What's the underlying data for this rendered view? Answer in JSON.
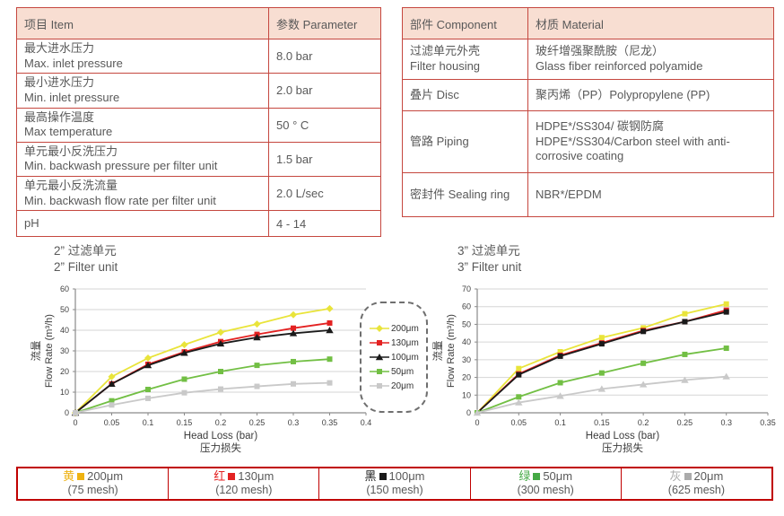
{
  "colors": {
    "table_border": "#c5473f",
    "header_bg": "#f8ded2",
    "strip_border": "#c00000",
    "text": "#595959",
    "grid": "#d6d6d6",
    "axis": "#8a8a8a"
  },
  "tables": {
    "left": {
      "headers": [
        "项目 Item",
        "参数 Parameter"
      ],
      "rows": [
        {
          "zh": "最大进水压力",
          "en": "Max. inlet pressure",
          "value": "8.0 bar"
        },
        {
          "zh": "最小进水压力",
          "en": "Min. inlet pressure",
          "value": "2.0 bar"
        },
        {
          "zh": "最高操作温度",
          "en": "Max temperature",
          "value": "50 ° C"
        },
        {
          "zh": "单元最小反洗压力",
          "en": "Min. backwash pressure per filter unit",
          "value": "1.5 bar"
        },
        {
          "zh": "单元最小反洗流量",
          "en": "Min. backwash flow rate per filter unit",
          "value": "2.0 L/sec"
        },
        {
          "zh": "pH",
          "en": "",
          "value": "4 - 14"
        }
      ]
    },
    "right": {
      "headers": [
        "部件 Component",
        "材质 Material"
      ],
      "rows": [
        {
          "zh": "过滤单元外壳",
          "en": "Filter housing",
          "value_zh": "玻纤增强聚酰胺（尼龙）",
          "value_en": "Glass fiber reinforced polyamide"
        },
        {
          "zh": "叠片 Disc",
          "en": "",
          "value_zh": "聚丙烯（PP）Polypropylene (PP)",
          "value_en": ""
        },
        {
          "zh": "管路 Piping",
          "en": "",
          "value_zh": "HDPE*/SS304/ 碳钢防腐",
          "value_en": "HDPE*/SS304/Carbon steel with anti-corrosive coating"
        },
        {
          "zh": "密封件 Sealing ring",
          "en": "",
          "value_zh": "NBR*/EPDM",
          "value_en": ""
        }
      ]
    }
  },
  "chart_data": [
    {
      "type": "line",
      "title_zh": "2” 过滤单元",
      "title_en": "2” Filter unit",
      "xlabel": "Head Loss (bar)",
      "xlabel_zh": "压力损失",
      "ylabel_zh": "流量",
      "ylabel": "Flow Rate (m³/h)",
      "xlim": [
        0,
        0.4
      ],
      "ylim": [
        0,
        60
      ],
      "xticks": [
        0,
        0.05,
        0.1,
        0.15,
        0.2,
        0.25,
        0.3,
        0.35,
        0.4
      ],
      "xtick_labels": [
        "0",
        "0.05",
        "0.1",
        "0.15",
        "0.2",
        "0.25",
        "0.3",
        "0.35",
        "0.4"
      ],
      "yticks": [
        0,
        10,
        20,
        30,
        40,
        50,
        60
      ],
      "grid": "horizontal",
      "x": [
        0,
        0.05,
        0.1,
        0.15,
        0.2,
        0.25,
        0.3,
        0.35
      ],
      "series": [
        {
          "name": "200μm",
          "color": "#e9e43a",
          "marker": "diamond",
          "values": [
            0,
            17.5,
            26.5,
            33,
            39,
            43,
            47.5,
            50.5
          ]
        },
        {
          "name": "130μm",
          "color": "#e32222",
          "marker": "square",
          "values": [
            0,
            14,
            23.5,
            29.5,
            34.5,
            38,
            41,
            43.5
          ]
        },
        {
          "name": "100μm",
          "color": "#1a1a1a",
          "marker": "triangle",
          "values": [
            0,
            14,
            23,
            29,
            33.5,
            36.5,
            38.5,
            40
          ]
        },
        {
          "name": "50μm",
          "color": "#72bf44",
          "marker": "square",
          "values": [
            0,
            5.8,
            11.3,
            16.3,
            20,
            23,
            24.8,
            26
          ]
        },
        {
          "name": "20μm",
          "color": "#c9c9c9",
          "marker": "square",
          "values": [
            0,
            3.8,
            7,
            9.7,
            11.5,
            12.8,
            14,
            14.5
          ]
        }
      ]
    },
    {
      "type": "line",
      "title_zh": "3” 过滤单元",
      "title_en": "3” Filter unit",
      "xlabel": "Head Loss (bar)",
      "xlabel_zh": "压力损失",
      "ylabel_zh": "流量",
      "ylabel": "Flow Rate (m³/h)",
      "xlim": [
        0,
        0.35
      ],
      "ylim": [
        0,
        70
      ],
      "xticks": [
        0,
        0.05,
        0.1,
        0.15,
        0.2,
        0.25,
        0.3,
        0.35
      ],
      "xtick_labels": [
        "0",
        "0.05",
        "0.1",
        "0.15",
        "0.2",
        "0.25",
        "0.3",
        "0.35"
      ],
      "yticks": [
        0,
        10,
        20,
        30,
        40,
        50,
        60,
        70
      ],
      "grid": "horizontal",
      "x": [
        0,
        0.05,
        0.1,
        0.15,
        0.2,
        0.25,
        0.3
      ],
      "series": [
        {
          "name": "200μm",
          "color": "#e9e43a",
          "marker": "square",
          "values": [
            0,
            25,
            34.5,
            42.5,
            48,
            56,
            61.5
          ]
        },
        {
          "name": "130μm",
          "color": "#e32222",
          "marker": "square",
          "values": [
            0,
            22,
            32.5,
            39.5,
            46.5,
            51.5,
            58
          ]
        },
        {
          "name": "100μm",
          "color": "#1a1a1a",
          "marker": "square",
          "values": [
            0,
            21.5,
            32,
            39,
            46,
            51.5,
            57
          ]
        },
        {
          "name": "50μm",
          "color": "#72bf44",
          "marker": "square",
          "values": [
            0,
            9,
            17,
            22.5,
            28,
            33,
            36.5
          ]
        },
        {
          "name": "20μm",
          "color": "#c9c9c9",
          "marker": "triangle",
          "values": [
            0,
            5.8,
            9.5,
            13.5,
            16,
            18.5,
            20.5
          ]
        }
      ]
    }
  ],
  "legend_box": {
    "items": [
      {
        "label": "200μm",
        "color": "#e9e43a",
        "marker": "diamond"
      },
      {
        "label": "130μm",
        "color": "#e32222",
        "marker": "square"
      },
      {
        "label": "100μm",
        "color": "#1a1a1a",
        "marker": "triangle"
      },
      {
        "label": "50μm",
        "color": "#72bf44",
        "marker": "square"
      },
      {
        "label": "20μm",
        "color": "#c9c9c9",
        "marker": "square"
      }
    ]
  },
  "strip": {
    "cells": [
      {
        "label_zh": "黄",
        "color": "#eeb211",
        "size": "200μm",
        "mesh": "(75 mesh)"
      },
      {
        "label_zh": "红",
        "color": "#e32222",
        "size": "130μm",
        "mesh": "(120 mesh)"
      },
      {
        "label_zh": "黑",
        "color": "#1a1a1a",
        "size": "100μm",
        "mesh": "(150 mesh)"
      },
      {
        "label_zh": "绿",
        "color": "#44a944",
        "size": "50μm",
        "mesh": "(300 mesh)"
      },
      {
        "label_zh": "灰",
        "color": "#ababab",
        "size": "20μm",
        "mesh": "(625 mesh)"
      }
    ]
  }
}
